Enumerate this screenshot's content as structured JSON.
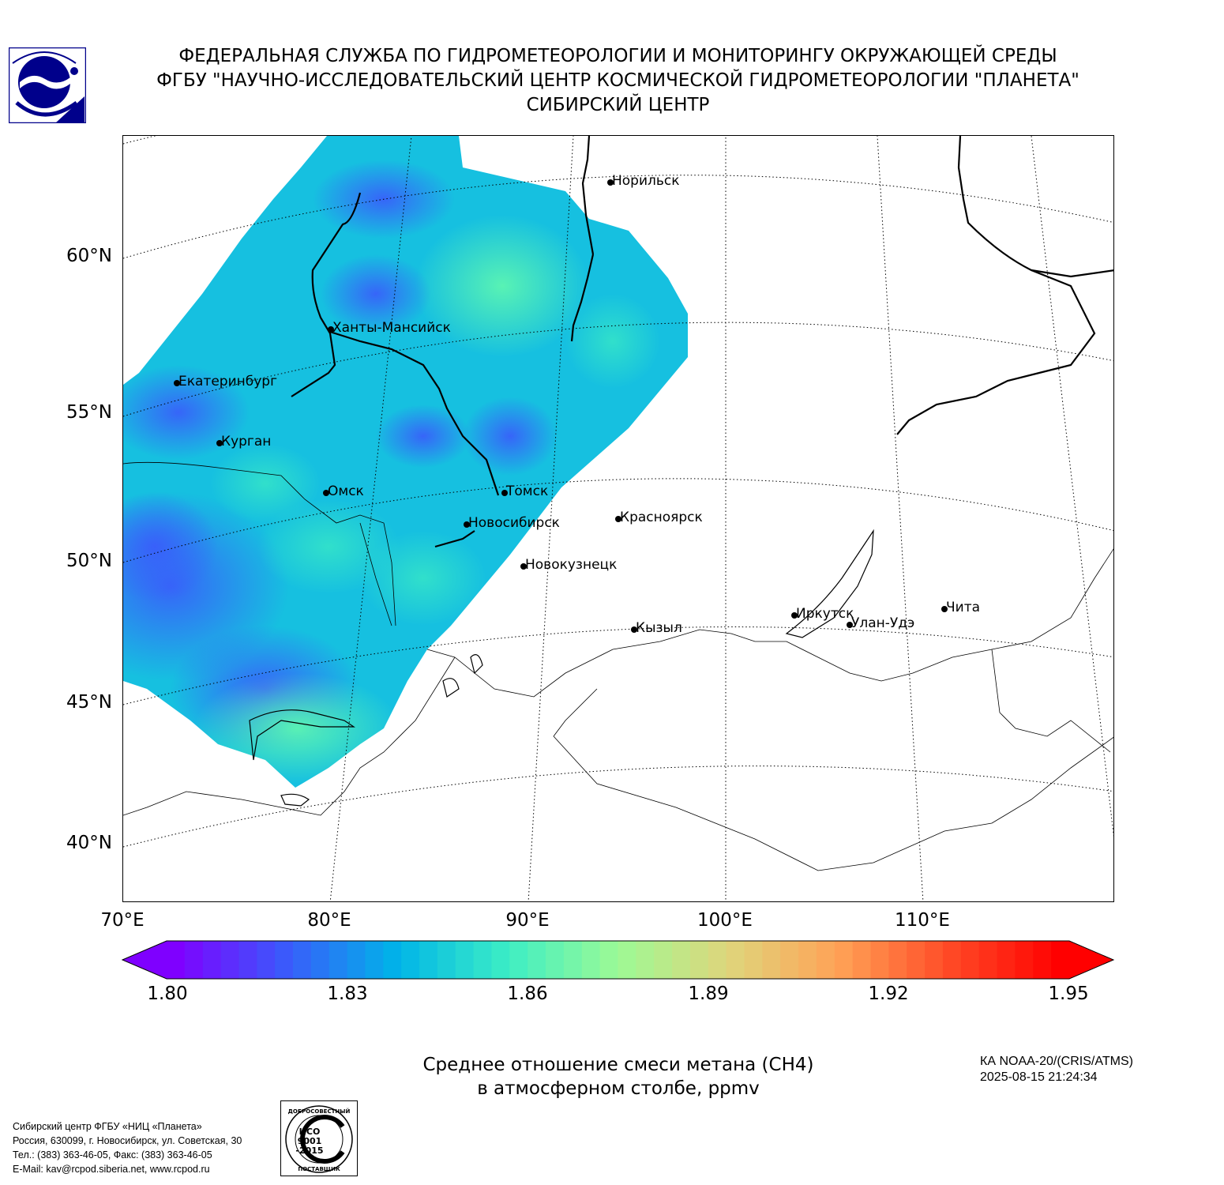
{
  "header": {
    "line1": "ФЕДЕРАЛЬНАЯ СЛУЖБА ПО ГИДРОМЕТЕОРОЛОГИИ И МОНИТОРИНГУ ОКРУЖАЮЩЕЙ СРЕДЫ",
    "line2": "ФГБУ \"НАУЧНО-ИССЛЕДОВАТЕЛЬСКИЙ ЦЕНТР КОСМИЧЕСКОЙ ГИДРОМЕТЕОРОЛОГИИ \"ПЛАНЕТА\"",
    "line3": "СИБИРСКИЙ ЦЕНТР"
  },
  "map": {
    "lat_labels": [
      "60°N",
      "55°N",
      "50°N",
      "45°N",
      "40°N"
    ],
    "lon_labels": [
      "70°E",
      "80°E",
      "90°E",
      "100°E",
      "110°E"
    ],
    "cities": [
      {
        "name": "Норильск"
      },
      {
        "name": "Ханты-Мансийск"
      },
      {
        "name": "Екатеринбург"
      },
      {
        "name": "Курган"
      },
      {
        "name": "Омск"
      },
      {
        "name": "Томск"
      },
      {
        "name": "Новосибирск"
      },
      {
        "name": "Красноярск"
      },
      {
        "name": "Новокузнецк"
      },
      {
        "name": "Кызыл"
      },
      {
        "name": "Иркутск"
      },
      {
        "name": "Улан-Удэ"
      },
      {
        "name": "Чита"
      }
    ]
  },
  "colorbar": {
    "ticks": [
      "1.80",
      "1.83",
      "1.86",
      "1.89",
      "1.92",
      "1.95"
    ],
    "min": 1.8,
    "max": 1.95,
    "colors": [
      "#7f00ff",
      "#3a5bfb",
      "#00b4e8",
      "#3ceec5",
      "#9dfa95",
      "#dfd57b",
      "#ffa256",
      "#ff4a26",
      "#ff0000"
    ]
  },
  "caption": {
    "line1": "Среднее отношение смеси метана (CH4)",
    "line2": "в атмосферном столбе, ppmv"
  },
  "satellite": {
    "line1": "КА NOAA-20/(CRIS/ATMS)",
    "line2": "2025-08-15 21:24:34"
  },
  "footer": {
    "line1": "Сибирский центр ФГБУ «НИЦ «Планета»",
    "line2": "Россия, 630099, г. Новосибирск, ул. Советская, 30",
    "line3": "Тел.: (383) 363-46-05, Факс: (383) 363-46-05",
    "line4": "E-Mail: kav@rcpod.siberia.net, www.rcpod.ru"
  },
  "iso_badge": {
    "top_text": "ДОБРОСОВЕСТНЫЙ",
    "line1": "ИСО",
    "line2": "9001",
    "line3": "-2015",
    "bottom_text": "ПОСТАВЩИК"
  },
  "colors": {
    "dark_blue": "#00008b",
    "field_base": "#16c0e0"
  }
}
